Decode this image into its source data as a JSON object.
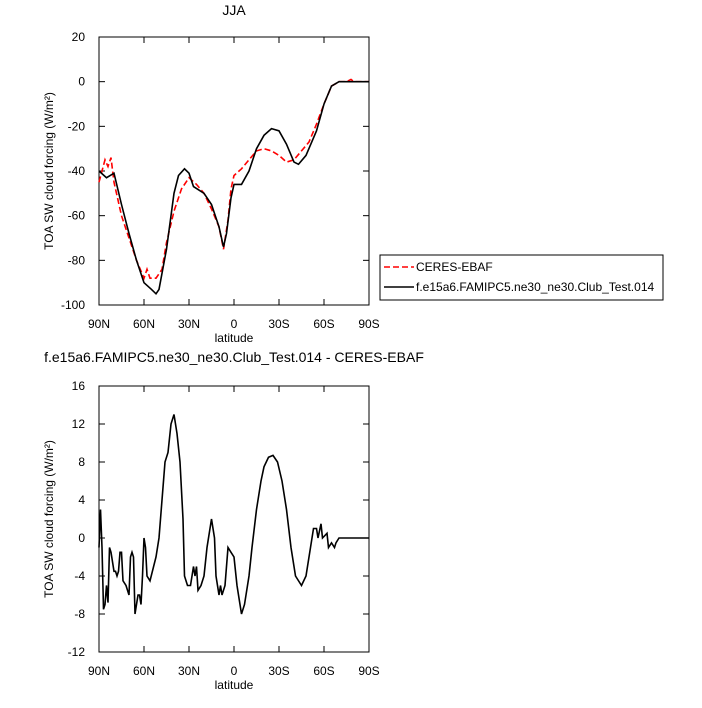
{
  "chart_data": [
    {
      "type": "line",
      "title": "JJA",
      "xlabel": "latitude",
      "ylabel": "TOA SW cloud forcing (W/m²)",
      "xlim": [
        90,
        -90
      ],
      "xticks": [
        {
          "value": 90,
          "label": "90N"
        },
        {
          "value": 60,
          "label": "60N"
        },
        {
          "value": 30,
          "label": "30N"
        },
        0,
        {
          "value": -30,
          "label": "30S"
        },
        {
          "value": -60,
          "label": "60S"
        },
        {
          "value": -90,
          "label": "90S"
        }
      ],
      "ylim": [
        -100,
        20
      ],
      "yticks": [
        20,
        0,
        -20,
        -40,
        -60,
        -80,
        -100
      ],
      "series": [
        {
          "name": "CERES-EBAF",
          "color": "#ff0000",
          "dash": true,
          "x": [
            90,
            88,
            86,
            84,
            82,
            80,
            75,
            70,
            65,
            60,
            58,
            56,
            52,
            48,
            45,
            40,
            35,
            30,
            25,
            20,
            15,
            10,
            7,
            4,
            2,
            0,
            -5,
            -10,
            -15,
            -20,
            -25,
            -30,
            -35,
            -40,
            -45,
            -50,
            -55,
            -60,
            -65,
            -70,
            -75,
            -78,
            -80,
            -90
          ],
          "values": [
            -45,
            -40,
            -35,
            -38,
            -34,
            -45,
            -60,
            -70,
            -80,
            -88,
            -84,
            -88,
            -88,
            -84,
            -72,
            -58,
            -48,
            -43,
            -46,
            -50,
            -57,
            -65,
            -75,
            -62,
            -48,
            -42,
            -39,
            -35,
            -31,
            -30,
            -31,
            -33,
            -36,
            -35,
            -31,
            -27,
            -19,
            -10,
            -2,
            0,
            0,
            1,
            0,
            0
          ]
        },
        {
          "name": "f.e15a6.FAMIPC5.ne30_ne30.Club_Test.014",
          "color": "#000000",
          "dash": false,
          "x": [
            90,
            85,
            80,
            75,
            70,
            65,
            60,
            55,
            52,
            50,
            45,
            40,
            37,
            33,
            30,
            27,
            20,
            15,
            10,
            7,
            5,
            2,
            0,
            -5,
            -10,
            -15,
            -20,
            -25,
            -30,
            -35,
            -40,
            -43,
            -48,
            -55,
            -60,
            -65,
            -70,
            -80,
            -90
          ],
          "values": [
            -40,
            -43,
            -41,
            -55,
            -68,
            -80,
            -90,
            -93,
            -95,
            -93,
            -75,
            -50,
            -42,
            -39,
            -41,
            -47,
            -50,
            -55,
            -65,
            -74,
            -68,
            -52,
            -46,
            -46,
            -40,
            -30,
            -24,
            -21,
            -22,
            -28,
            -36,
            -37,
            -33,
            -22,
            -10,
            -2,
            0,
            0,
            0
          ]
        }
      ]
    },
    {
      "type": "line",
      "title": "f.e15a6.FAMIPC5.ne30_ne30.Club_Test.014 - CERES-EBAF",
      "xlabel": "latitude",
      "ylabel": "TOA SW cloud forcing (W/m²)",
      "xlim": [
        90,
        -90
      ],
      "xticks": [
        {
          "value": 90,
          "label": "90N"
        },
        {
          "value": 60,
          "label": "60N"
        },
        {
          "value": 30,
          "label": "30N"
        },
        0,
        {
          "value": -30,
          "label": "30S"
        },
        {
          "value": -60,
          "label": "60S"
        },
        {
          "value": -90,
          "label": "90S"
        }
      ],
      "ylim": [
        -12,
        16
      ],
      "yticks": [
        16,
        12,
        8,
        4,
        0,
        -4,
        -8,
        -12
      ],
      "series": [
        {
          "color": "#000000",
          "dash": false,
          "x": [
            90,
            89,
            88,
            87,
            86,
            85,
            84,
            83,
            82,
            80,
            79,
            78,
            77,
            76,
            75,
            74,
            72,
            70,
            69,
            68,
            67,
            66,
            65,
            64,
            63,
            62,
            61,
            60,
            59,
            58,
            56,
            52,
            50,
            48,
            46,
            44,
            42,
            40,
            38,
            36,
            34,
            33,
            31,
            29,
            28,
            27,
            26,
            25,
            24,
            22,
            20,
            18,
            16,
            15,
            13,
            12,
            10,
            9,
            8,
            6,
            4,
            2,
            0,
            -2,
            -4,
            -5,
            -7,
            -10,
            -12,
            -15,
            -18,
            -20,
            -23,
            -26,
            -29,
            -32,
            -35,
            -38,
            -41,
            -45,
            -48,
            -50,
            -53,
            -55,
            -56,
            -58,
            -59,
            -62,
            -63,
            -65,
            -67,
            -68,
            -70,
            -72,
            -74,
            -80,
            -90
          ],
          "values": [
            -1,
            3,
            -1,
            -7.5,
            -7,
            -5,
            -6.8,
            -1,
            -1.5,
            -3.5,
            -3.5,
            -4,
            -3.5,
            -1.5,
            -1.5,
            -4.5,
            -5,
            -6,
            -2,
            -1.5,
            -2,
            -8,
            -7,
            -6,
            -6,
            -7,
            -4,
            0,
            -1,
            -4,
            -4.5,
            -2,
            0,
            4,
            8,
            9,
            12,
            13,
            11,
            8,
            2,
            -4,
            -5,
            -5,
            -4,
            -3,
            -4,
            -3,
            -5.5,
            -5,
            -4,
            -1,
            1,
            2,
            0,
            -4,
            -6,
            -5,
            -6,
            -5,
            -1,
            -1.5,
            -2,
            -5,
            -7,
            -8,
            -7,
            -4,
            -1,
            3,
            6,
            7.5,
            8.5,
            8.7,
            8,
            6,
            3,
            -1,
            -4,
            -5,
            -4,
            -2,
            1,
            1,
            0,
            1.5,
            0,
            0.5,
            -1,
            -0.5,
            -1,
            -0.5,
            0,
            0,
            0,
            0,
            0
          ]
        }
      ]
    }
  ]
}
